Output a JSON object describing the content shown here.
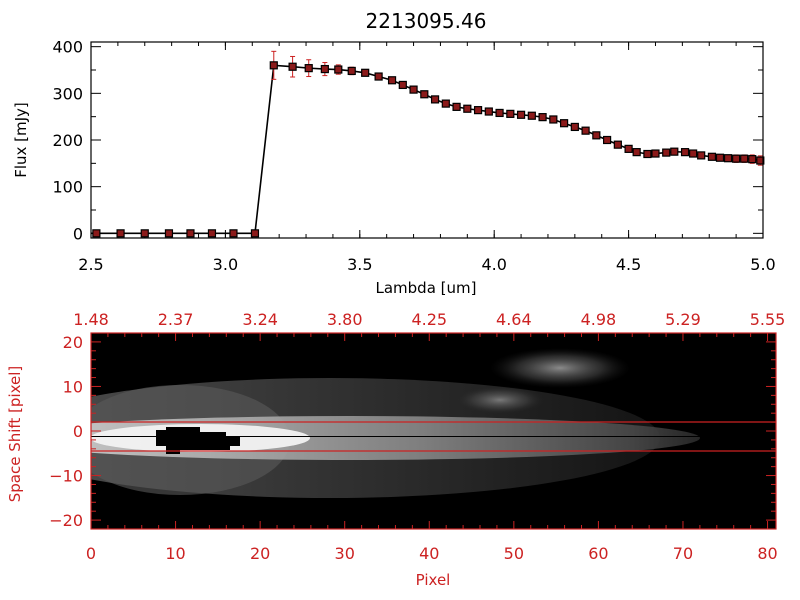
{
  "chart_data": [
    {
      "type": "line",
      "title": "2213095.46",
      "xlabel": "Lambda [um]",
      "ylabel": "Flux [mJy]",
      "xlim": [
        2.5,
        5.0
      ],
      "ylim": [
        -10,
        410
      ],
      "x_ticks": [
        2.5,
        3.0,
        3.5,
        4.0,
        4.5,
        5.0
      ],
      "x_tick_labels": [
        "2.5",
        "3.0",
        "3.5",
        "4.0",
        "4.5",
        "5.0"
      ],
      "y_ticks": [
        0,
        100,
        200,
        300,
        400
      ],
      "y_tick_labels": [
        "0",
        "100",
        "200",
        "300",
        "400"
      ],
      "grid": false,
      "colors": {
        "line": "#000000",
        "marker": "#8b1a1a",
        "errorbar": "#cc2222",
        "axes": "#000000"
      },
      "series": [
        {
          "x": [
            2.52,
            2.61,
            2.7,
            2.79,
            2.87,
            2.95,
            3.03,
            3.11,
            3.18,
            3.25,
            3.31,
            3.37,
            3.42,
            3.47,
            3.52,
            3.57,
            3.62,
            3.66,
            3.7,
            3.74,
            3.78,
            3.82,
            3.86,
            3.9,
            3.94,
            3.98,
            4.02,
            4.06,
            4.1,
            4.14,
            4.18,
            4.22,
            4.26,
            4.3,
            4.34,
            4.38,
            4.42,
            4.46,
            4.5,
            4.53,
            4.57,
            4.6,
            4.64,
            4.67,
            4.71,
            4.74,
            4.77,
            4.81,
            4.84,
            4.87,
            4.9,
            4.93,
            4.96,
            4.99
          ],
          "y": [
            0,
            0,
            0,
            0,
            0,
            0,
            0,
            0,
            360,
            357,
            354,
            352,
            351,
            348,
            344,
            336,
            328,
            318,
            308,
            298,
            287,
            278,
            271,
            267,
            264,
            261,
            258,
            256,
            254,
            252,
            249,
            244,
            236,
            228,
            220,
            210,
            200,
            190,
            181,
            174,
            170,
            171,
            173,
            175,
            174,
            171,
            167,
            164,
            162,
            161,
            160,
            160,
            159,
            156
          ],
          "yerr": [
            0,
            0,
            0,
            0,
            0,
            0,
            0,
            0,
            30,
            22,
            18,
            14,
            10,
            8,
            6,
            5,
            5,
            5,
            4,
            4,
            4,
            4,
            4,
            4,
            4,
            4,
            4,
            4,
            4,
            4,
            4,
            4,
            4,
            4,
            4,
            4,
            4,
            4,
            4,
            4,
            4,
            4,
            4,
            4,
            4,
            4,
            5,
            5,
            5,
            6,
            8,
            8,
            9,
            10
          ]
        }
      ]
    },
    {
      "type": "heatmap",
      "xlabel": "Pixel",
      "ylabel": "Space Shift [pixel]",
      "top_axis_labels": [
        "1.48",
        "2.37",
        "3.24",
        "3.80",
        "4.25",
        "4.64",
        "4.98",
        "5.29",
        "5.55"
      ],
      "top_axis_ticks": [
        0,
        10,
        20,
        30,
        40,
        50,
        60,
        70,
        80
      ],
      "x_ticks": [
        0,
        10,
        20,
        30,
        40,
        50,
        60,
        70,
        80
      ],
      "x_tick_labels": [
        "0",
        "10",
        "20",
        "30",
        "40",
        "50",
        "60",
        "70",
        "80"
      ],
      "y_ticks": [
        -20,
        -10,
        0,
        10,
        20
      ],
      "y_tick_labels": [
        "−20",
        "−10",
        "0",
        "10",
        "20"
      ],
      "xlim": [
        0,
        81
      ],
      "ylim": [
        -22,
        22
      ],
      "grayscale": true,
      "extraction_aperture_y": [
        -3,
        3
      ],
      "trace_center_y": 0,
      "colors": {
        "axes": "#cc2222",
        "aperture": "#cc2222",
        "center_line": "#000000",
        "background": "#000000"
      }
    }
  ]
}
